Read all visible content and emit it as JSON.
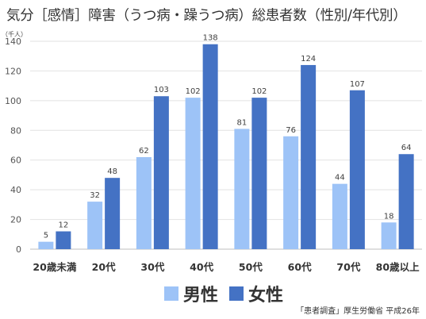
{
  "title": "気分［感情］障害（うつ病・躁うつ病）総患者数（性別/年代別）",
  "source": "「患者調査」厚生労働省 平成26年",
  "chart_data": {
    "type": "bar",
    "unit": "（千人）",
    "categories": [
      "20歳未満",
      "20代",
      "30代",
      "40代",
      "50代",
      "60代",
      "70代",
      "80歳以上"
    ],
    "series": [
      {
        "name": "男性",
        "color": "#9dc3f7",
        "values": [
          5,
          32,
          62,
          102,
          81,
          76,
          44,
          18
        ]
      },
      {
        "name": "女性",
        "color": "#4472c4",
        "values": [
          12,
          48,
          103,
          138,
          102,
          124,
          107,
          64
        ]
      }
    ],
    "ylim": [
      0,
      140
    ],
    "yticks": [
      0,
      20,
      40,
      60,
      80,
      100,
      120,
      140
    ],
    "grid": true,
    "legend_position": "bottom"
  }
}
